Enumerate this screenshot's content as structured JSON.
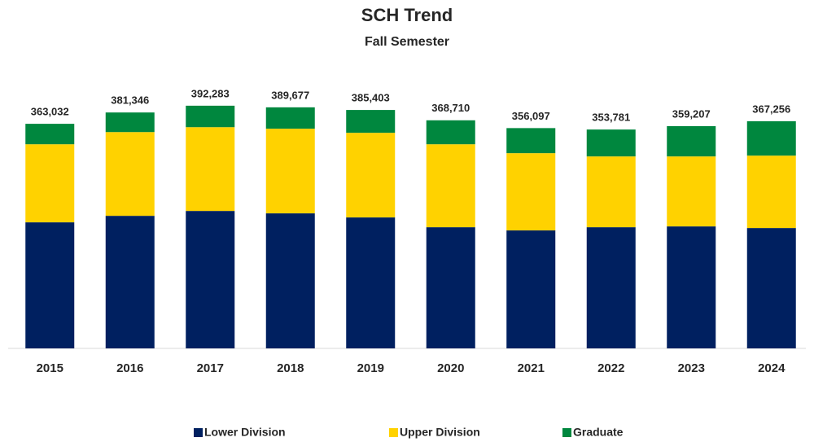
{
  "chart_data": {
    "type": "stacked_bar",
    "title": "SCH Trend",
    "subtitle": "Fall Semester",
    "categories": [
      "2015",
      "2016",
      "2017",
      "2018",
      "2019",
      "2020",
      "2021",
      "2022",
      "2023",
      "2024"
    ],
    "series": [
      {
        "name": "Lower Division",
        "color": "#002060",
        "values": [
          203800,
          214300,
          222200,
          218300,
          211700,
          195900,
          190700,
          195900,
          197200,
          194600
        ]
      },
      {
        "name": "Upper Division",
        "color": "#ffd200",
        "values": [
          126200,
          135400,
          135400,
          136800,
          136800,
          134100,
          124900,
          114400,
          113100,
          117000
        ]
      },
      {
        "name": "Graduate",
        "color": "#00873e",
        "values": [
          33032,
          31646,
          34683,
          34577,
          36903,
          38710,
          40497,
          43481,
          48907,
          55656
        ]
      }
    ],
    "totals": [
      363032,
      381346,
      392283,
      389677,
      385403,
      368710,
      356097,
      353781,
      359207,
      367256
    ],
    "total_labels": [
      "363,032",
      "381,346",
      "392,283",
      "389,677",
      "385,403",
      "368,710",
      "356,097",
      "353,781",
      "359,207",
      "367,256"
    ],
    "ylim": [
      0,
      400000
    ]
  }
}
